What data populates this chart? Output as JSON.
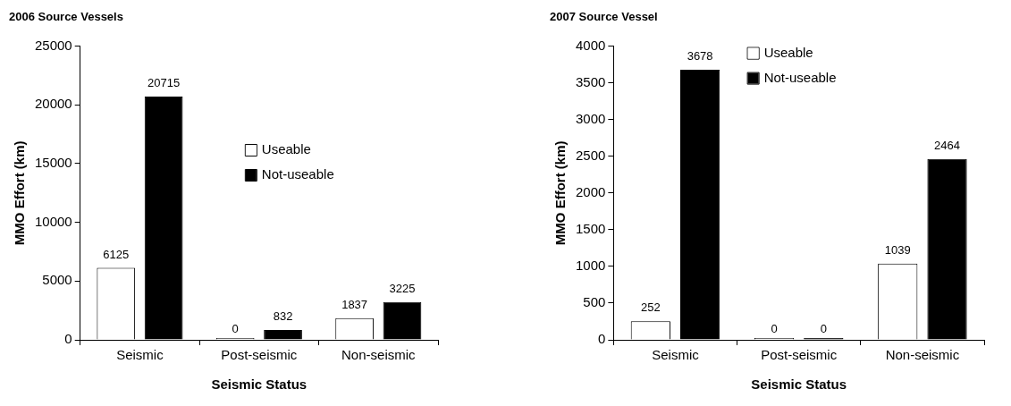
{
  "chart_data": [
    {
      "type": "bar",
      "title": "2006 Source Vessels",
      "xlabel": "Seismic Status",
      "ylabel": "MMO Effort (km)",
      "categories": [
        "Seismic",
        "Post-seismic",
        "Non-seismic"
      ],
      "series": [
        {
          "name": "Useable",
          "color": "#ffffff",
          "values": [
            6125,
            0,
            1837
          ]
        },
        {
          "name": "Not-useable",
          "color": "#000000",
          "values": [
            20715,
            832,
            3225
          ]
        }
      ],
      "ylim": [
        0,
        25000
      ],
      "yticks": [
        0,
        5000,
        10000,
        15000,
        20000,
        25000
      ],
      "grid": false,
      "legend": "center",
      "data_labels": true
    },
    {
      "type": "bar",
      "title": "2007 Source Vessel",
      "xlabel": "Seismic Status",
      "ylabel": "MMO Effort (km)",
      "categories": [
        "Seismic",
        "Post-seismic",
        "Non-seismic"
      ],
      "series": [
        {
          "name": "Useable",
          "color": "#ffffff",
          "values": [
            252,
            0,
            1039
          ]
        },
        {
          "name": "Not-useable",
          "color": "#000000",
          "values": [
            3678,
            0,
            2464
          ]
        }
      ],
      "ylim": [
        0,
        4000
      ],
      "yticks": [
        0,
        500,
        1000,
        1500,
        2000,
        2500,
        3000,
        3500,
        4000
      ],
      "grid": false,
      "legend": "top",
      "data_labels": true
    }
  ]
}
